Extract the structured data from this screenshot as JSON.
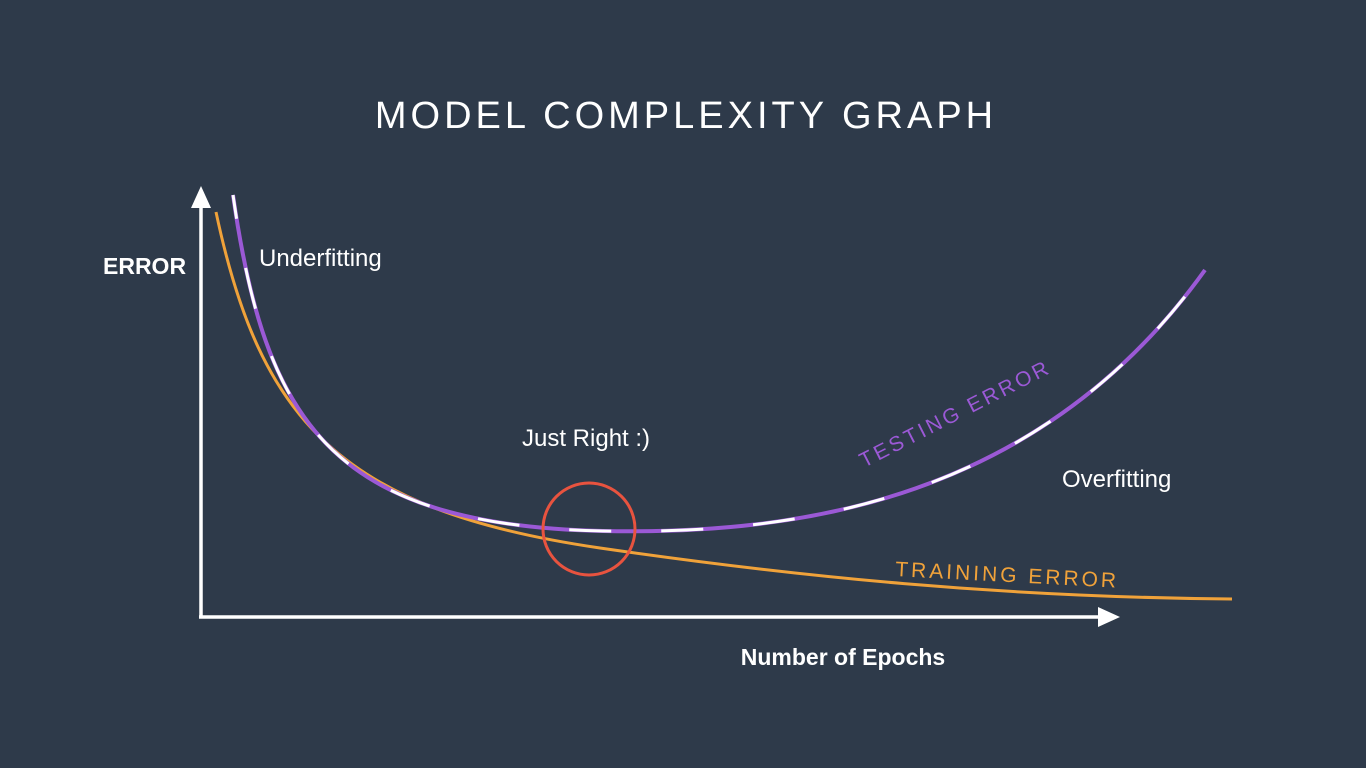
{
  "title": "MODEL COMPLEXITY GRAPH",
  "axes": {
    "y_label": "ERROR",
    "x_label": "Number of Epochs"
  },
  "annotations": {
    "left": "Underfitting",
    "middle": "Just Right :)",
    "right": "Overfitting"
  },
  "curves": {
    "testing": {
      "label": "TESTING ERROR",
      "color": "#9b59d6",
      "dash_color": "#ffffff"
    },
    "training": {
      "label": "TRAINING ERROR",
      "color": "#f0a23a"
    }
  },
  "colors": {
    "background": "#2e3a4a",
    "axis": "#ffffff",
    "highlight_circle": "#e8533f"
  }
}
